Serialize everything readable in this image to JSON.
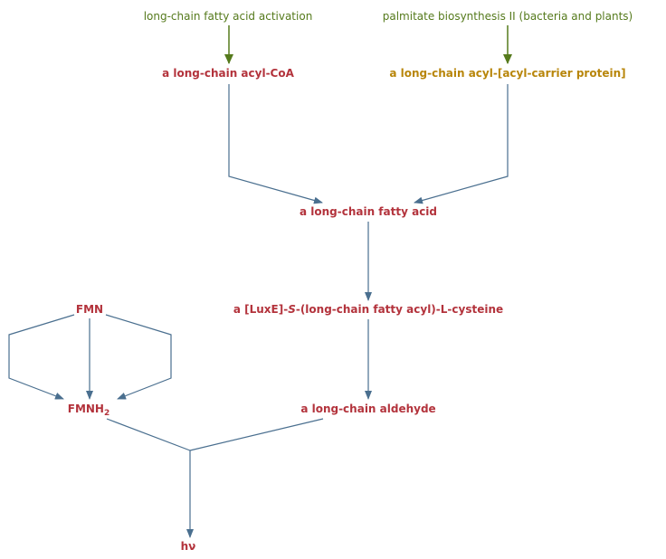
{
  "colors": {
    "pathway_link": "#557a1c",
    "compound": "#b3333c",
    "compound_acp": "#b8860b",
    "arrow": "#4a6f8f"
  },
  "pathways": {
    "fatty_acid_activation": "long-chain fatty acid activation",
    "palmitate_biosynthesis": "palmitate biosynthesis II (bacteria and plants)"
  },
  "compounds": {
    "acyl_coa": "a long-chain acyl-CoA",
    "acyl_acp": "a long-chain acyl-[acyl-carrier protein]",
    "fatty_acid": "a long-chain fatty acid",
    "luxe_prefix": "a [LuxE]-",
    "luxe_italic": "S",
    "luxe_suffix": "-(long-chain fatty acyl)-L-cysteine",
    "fmn": "FMN",
    "fmnh2_base": "FMNH",
    "fmnh2_sub": "2",
    "aldehyde": "a long-chain aldehyde",
    "light": "hν"
  }
}
